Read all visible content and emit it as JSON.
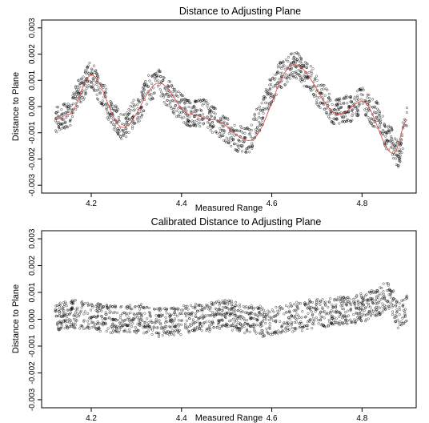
{
  "chart_data": [
    {
      "type": "scatter",
      "title": "Distance to Adjusting Plane",
      "xlabel": "Measured Range",
      "ylabel": "Distance to Plane",
      "xlim": [
        4.09,
        4.92
      ],
      "ylim": [
        -0.0033,
        0.0033
      ],
      "xticks": [
        4.2,
        4.4,
        4.6,
        4.8
      ],
      "xtick_labels": [
        "4.2",
        "4.4",
        "4.6",
        "4.8"
      ],
      "yticks": [
        -0.003,
        -0.002,
        -0.001,
        0.0,
        0.001,
        0.002,
        0.003
      ],
      "ytick_labels": [
        "-0.003",
        "-0.002",
        "-0.001",
        "0.000",
        "0.001",
        "0.002",
        "0.003"
      ],
      "grid": false,
      "marker": "open-circle",
      "colors": {
        "points": "#000000",
        "fit_line": "#d9534f"
      },
      "fit_line": {
        "x": [
          4.12,
          4.15,
          4.2,
          4.27,
          4.35,
          4.42,
          4.47,
          4.55,
          4.65,
          4.75,
          4.8,
          4.87,
          4.9
        ],
        "y": [
          -0.0005,
          -0.0003,
          0.0012,
          -0.0008,
          0.0009,
          -0.0003,
          -0.0005,
          -0.0013,
          0.0016,
          -0.0003,
          0.0002,
          -0.0018,
          -0.0005
        ]
      },
      "series": [
        {
          "x": [
            4.12,
            4.15,
            4.175,
            4.2,
            4.22,
            4.25,
            4.27,
            4.3,
            4.33,
            4.35,
            4.37,
            4.39,
            4.42,
            4.45,
            4.47,
            4.5,
            4.52,
            4.55,
            4.57,
            4.6,
            4.62,
            4.65,
            4.68,
            4.71,
            4.74,
            4.77,
            4.8,
            4.83,
            4.86,
            4.88,
            4.9
          ],
          "y": [
            -0.0005,
            -0.0003,
            0.0006,
            0.0012,
            0.0006,
            -0.0004,
            -0.0008,
            -0.0002,
            0.0007,
            0.0009,
            0.0005,
            0.0001,
            -0.0003,
            -0.0002,
            -0.0005,
            -0.0009,
            -0.0012,
            -0.0013,
            -0.0005,
            0.0006,
            0.0012,
            0.0016,
            0.0012,
            0.0004,
            -0.0002,
            -0.0001,
            0.0002,
            -0.0003,
            -0.0012,
            -0.0018,
            -0.0005
          ]
        }
      ]
    },
    {
      "type": "scatter",
      "title": "Calibrated Distance to Adjusting Plane",
      "xlabel": "Measured Range",
      "ylabel": "Distance to Plane",
      "xlim": [
        4.09,
        4.92
      ],
      "ylim": [
        -0.0033,
        0.0033
      ],
      "xticks": [
        4.2,
        4.4,
        4.6,
        4.8
      ],
      "xtick_labels": [
        "4.2",
        "4.4",
        "4.6",
        "4.8"
      ],
      "yticks": [
        -0.003,
        -0.002,
        -0.001,
        0.0,
        0.001,
        0.002,
        0.003
      ],
      "ytick_labels": [
        "-0.003",
        "-0.002",
        "-0.001",
        "0.000",
        "0.001",
        "0.002",
        "0.003"
      ],
      "grid": false,
      "marker": "open-circle",
      "colors": {
        "points": "#000000"
      },
      "series": [
        {
          "x": [
            4.12,
            4.16,
            4.2,
            4.25,
            4.3,
            4.35,
            4.4,
            4.45,
            4.5,
            4.55,
            4.6,
            4.65,
            4.7,
            4.75,
            4.8,
            4.83,
            4.86,
            4.88,
            4.9
          ],
          "y": [
            0.0001,
            0.0002,
            0.0001,
            0.0,
            0.0,
            -0.0001,
            0.0,
            0.0001,
            0.0002,
            0.0,
            -0.0001,
            0.0001,
            0.0002,
            0.0003,
            0.0004,
            0.0006,
            0.0009,
            0.0002,
            0.0004
          ]
        }
      ]
    }
  ]
}
